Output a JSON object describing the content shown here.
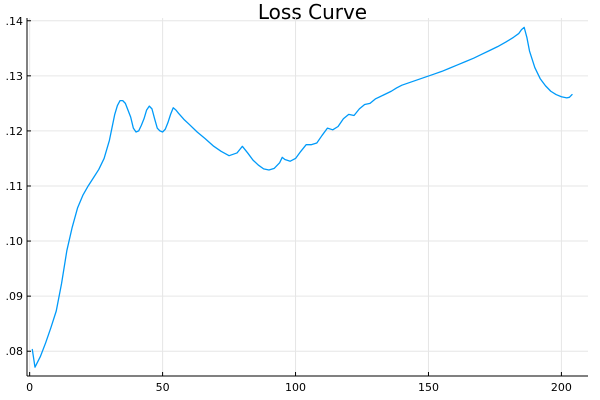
{
  "chart_data": {
    "type": "line",
    "title": "Loss Curve",
    "xlabel": "",
    "ylabel": "",
    "xlim": [
      -1,
      210
    ],
    "ylim": [
      0.0755,
      0.1405
    ],
    "x_ticks": [
      0,
      50,
      100,
      150,
      200
    ],
    "x_tick_labels": [
      "0",
      "50",
      "100",
      "150",
      "200"
    ],
    "y_ticks": [
      0.08,
      0.09,
      0.1,
      0.11,
      0.12,
      0.13,
      0.14
    ],
    "y_tick_labels": [
      ".08",
      ".09",
      ".10",
      ".11",
      ".12",
      ".13",
      ".14"
    ],
    "grid": true,
    "legend": "none",
    "colors": {
      "line": "#009af9"
    },
    "series": [
      {
        "x": [
          1,
          2,
          4,
          6,
          8,
          10,
          12,
          14,
          16,
          18,
          20,
          22,
          24,
          26,
          28,
          30,
          32,
          33,
          34,
          35,
          36,
          38,
          39,
          40,
          41,
          42,
          43,
          44,
          45,
          46,
          47,
          48,
          49,
          50,
          51,
          52,
          53,
          54,
          55,
          56,
          58,
          60,
          63,
          66,
          69,
          72,
          75,
          78,
          79,
          80,
          82,
          84,
          86,
          88,
          90,
          92,
          94,
          95,
          96,
          98,
          100,
          102,
          104,
          106,
          108,
          110,
          112,
          114,
          116,
          118,
          120,
          122,
          124,
          126,
          128,
          130,
          133,
          136,
          138,
          140,
          143,
          146,
          149,
          152,
          155,
          158,
          161,
          164,
          167,
          170,
          173,
          176,
          179,
          182,
          184,
          185,
          186,
          187,
          188,
          190,
          192,
          194,
          196,
          198,
          200,
          202,
          203,
          204
        ],
        "y": [
          0.0803,
          0.0771,
          0.079,
          0.0815,
          0.0843,
          0.0873,
          0.0923,
          0.0983,
          0.1025,
          0.106,
          0.1083,
          0.11,
          0.1115,
          0.113,
          0.115,
          0.1183,
          0.123,
          0.1246,
          0.1255,
          0.1255,
          0.125,
          0.1225,
          0.1205,
          0.1198,
          0.12,
          0.121,
          0.1222,
          0.1238,
          0.1245,
          0.124,
          0.1222,
          0.1205,
          0.12,
          0.1198,
          0.1203,
          0.1215,
          0.123,
          0.1242,
          0.1238,
          0.1232,
          0.1221,
          0.1212,
          0.1198,
          0.1186,
          0.1173,
          0.1163,
          0.1155,
          0.116,
          0.1166,
          0.1172,
          0.116,
          0.1147,
          0.1138,
          0.1131,
          0.1129,
          0.1132,
          0.1142,
          0.1152,
          0.1148,
          0.1145,
          0.115,
          0.1163,
          0.1175,
          0.1175,
          0.1178,
          0.1192,
          0.1205,
          0.1202,
          0.1208,
          0.1222,
          0.123,
          0.1228,
          0.124,
          0.1248,
          0.125,
          0.1258,
          0.1265,
          0.1272,
          0.1278,
          0.1283,
          0.1288,
          0.1293,
          0.1298,
          0.1303,
          0.1308,
          0.1314,
          0.132,
          0.1326,
          0.1332,
          0.1339,
          0.1346,
          0.1353,
          0.1361,
          0.137,
          0.1377,
          0.1384,
          0.1388,
          0.137,
          0.1345,
          0.1315,
          0.1295,
          0.1282,
          0.1272,
          0.1266,
          0.1262,
          0.126,
          0.1261,
          0.1266
        ]
      }
    ]
  }
}
